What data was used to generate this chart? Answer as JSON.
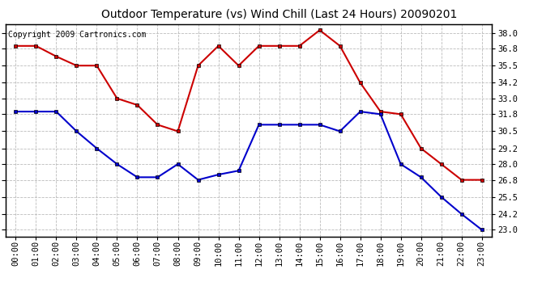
{
  "title": "Outdoor Temperature (vs) Wind Chill (Last 24 Hours) 20090201",
  "copyright_text": "Copyright 2009 Cartronics.com",
  "x_labels": [
    "00:00",
    "01:00",
    "02:00",
    "03:00",
    "04:00",
    "05:00",
    "06:00",
    "07:00",
    "08:00",
    "09:00",
    "10:00",
    "11:00",
    "12:00",
    "13:00",
    "14:00",
    "15:00",
    "16:00",
    "17:00",
    "18:00",
    "19:00",
    "20:00",
    "21:00",
    "22:00",
    "23:00"
  ],
  "temp_red": [
    37.0,
    37.0,
    36.2,
    35.5,
    35.5,
    33.0,
    32.5,
    31.0,
    30.5,
    35.5,
    37.0,
    35.5,
    37.0,
    37.0,
    37.0,
    38.2,
    37.0,
    34.2,
    32.0,
    31.8,
    29.2,
    28.0,
    26.8,
    26.8
  ],
  "wind_chill_blue": [
    32.0,
    32.0,
    32.0,
    30.5,
    29.2,
    28.0,
    27.0,
    27.0,
    28.0,
    26.8,
    27.2,
    27.5,
    31.0,
    31.0,
    31.0,
    31.0,
    30.5,
    32.0,
    31.8,
    28.0,
    27.0,
    25.5,
    24.2,
    23.0
  ],
  "y_ticks": [
    23.0,
    24.2,
    25.5,
    26.8,
    28.0,
    29.2,
    30.5,
    31.8,
    33.0,
    34.2,
    35.5,
    36.8,
    38.0
  ],
  "y_min": 22.5,
  "y_max": 38.65,
  "red_color": "#cc0000",
  "blue_color": "#0000cc",
  "background_color": "#ffffff",
  "grid_color": "#bbbbbb",
  "title_fontsize": 10,
  "copyright_fontsize": 7,
  "tick_fontsize": 7.5,
  "marker_size": 3.5,
  "line_width": 1.5
}
